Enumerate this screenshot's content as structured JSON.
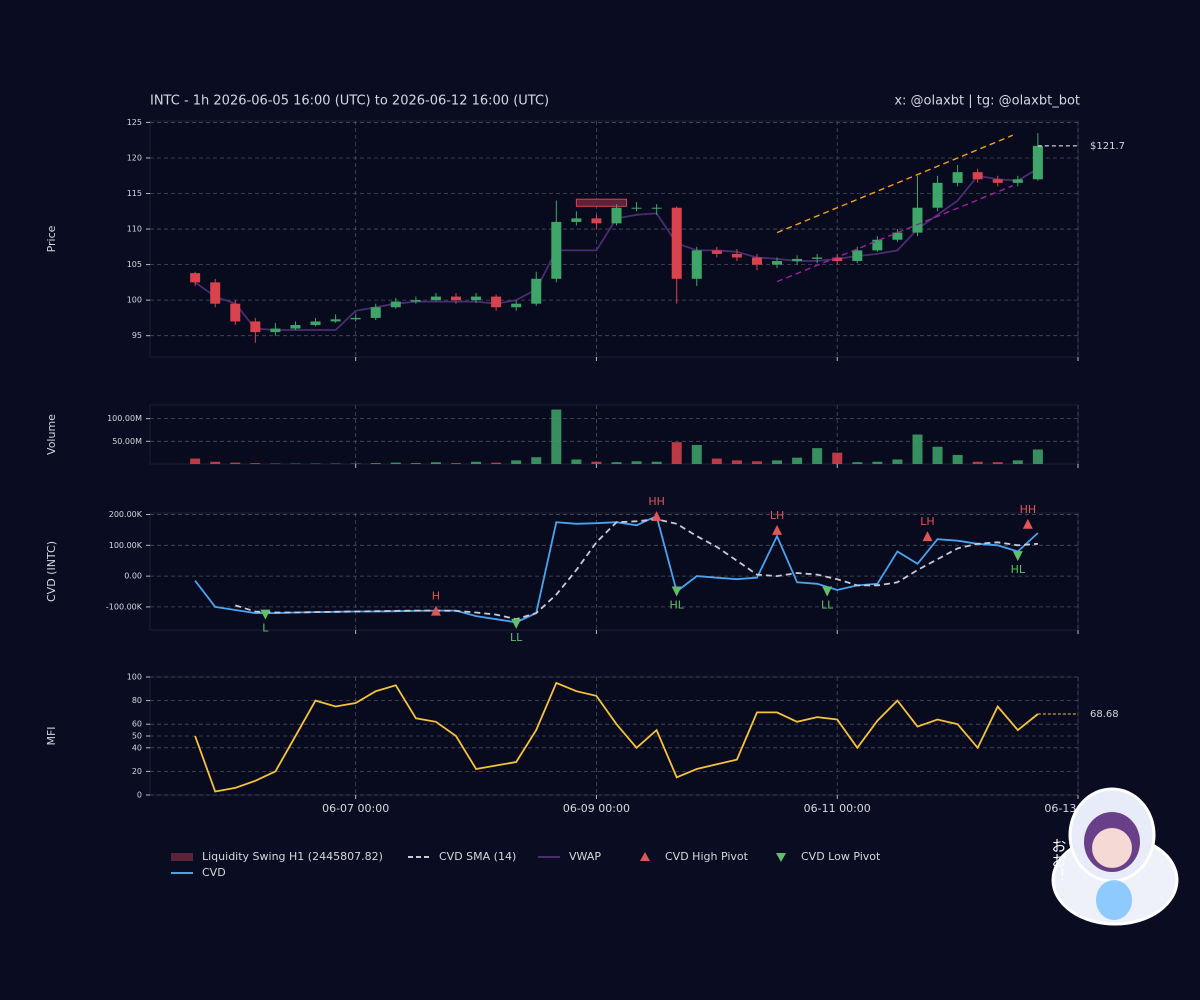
{
  "chart_data": [
    {
      "type": "candlestick",
      "title": "INTC - 1h 2026-06-05 16:00 (UTC) to 2026-06-12 16:00 (UTC)",
      "credit": "x: @olaxbt | tg: @olaxbt_bot",
      "ylabel": "Price",
      "x": [
        "06-05 16:00",
        "06-05 20:00",
        "06-06 00:00",
        "06-06 04:00",
        "06-06 08:00",
        "06-06 12:00",
        "06-06 16:00",
        "06-06 20:00",
        "06-07 00:00",
        "06-07 04:00",
        "06-07 08:00",
        "06-07 12:00",
        "06-07 16:00",
        "06-07 20:00",
        "06-08 00:00",
        "06-08 04:00",
        "06-08 08:00",
        "06-08 12:00",
        "06-08 16:00",
        "06-08 20:00",
        "06-09 00:00",
        "06-09 04:00",
        "06-09 08:00",
        "06-09 12:00",
        "06-09 16:00",
        "06-09 20:00",
        "06-10 00:00",
        "06-10 04:00",
        "06-10 08:00",
        "06-10 12:00",
        "06-10 16:00",
        "06-10 20:00",
        "06-11 00:00",
        "06-11 04:00",
        "06-11 08:00",
        "06-11 12:00",
        "06-11 16:00",
        "06-11 20:00",
        "06-12 00:00",
        "06-12 04:00",
        "06-12 08:00",
        "06-12 12:00",
        "06-12 16:00"
      ],
      "open": [
        103.8,
        102.5,
        99.5,
        97,
        95.5,
        96,
        96.5,
        97,
        97.3,
        97.5,
        99,
        99.8,
        100,
        100.5,
        100,
        100.5,
        99,
        99.5,
        103,
        111,
        111.5,
        110.8,
        113,
        113,
        113,
        103,
        107,
        106.5,
        106,
        105,
        105.5,
        105.8,
        106,
        105.5,
        107,
        108.5,
        109.5,
        113,
        116.5,
        118,
        117,
        116.5,
        117
      ],
      "high": [
        104,
        103,
        100,
        97.5,
        96.8,
        97,
        97.5,
        98,
        98,
        99.5,
        100.3,
        100.5,
        101,
        101,
        101,
        100.8,
        100,
        104,
        114,
        112.5,
        112,
        113.5,
        113.8,
        113.5,
        113.2,
        107.5,
        107.5,
        107.2,
        106.5,
        106,
        106.3,
        106.5,
        106.5,
        107.5,
        109,
        110,
        117.5,
        117.5,
        119,
        118.5,
        117.5,
        117.5,
        123.5
      ],
      "low": [
        102,
        99,
        96.5,
        94,
        95,
        95.8,
        96.3,
        96.8,
        97,
        97.2,
        98.8,
        99.5,
        99.8,
        99.5,
        99.6,
        98.5,
        98.5,
        99.2,
        102.5,
        110.5,
        110,
        110.5,
        112.5,
        112,
        99.5,
        102,
        106,
        105.5,
        104.2,
        104.5,
        105,
        105.2,
        105,
        105.2,
        106.8,
        108.2,
        109,
        112.5,
        116,
        116.5,
        116,
        116,
        116.8
      ],
      "close": [
        102.5,
        99.5,
        97,
        95.5,
        96,
        96.5,
        97,
        97.3,
        97.5,
        99,
        99.8,
        100,
        100.5,
        100,
        100.5,
        99,
        99.5,
        103,
        111,
        111.5,
        110.8,
        113,
        113,
        113,
        103,
        107,
        106.5,
        106,
        105,
        105.5,
        105.8,
        106,
        105.5,
        107,
        108.5,
        109.5,
        113,
        116.5,
        118,
        117,
        116.5,
        117,
        121.7
      ],
      "up_color": "#3fa66a",
      "down_color": "#d9434e",
      "series": [
        {
          "name": "VWAP",
          "color": "#4a2d6e",
          "values": [
            102.5,
            100.5,
            99.5,
            96,
            95.8,
            95.8,
            95.8,
            95.8,
            98.5,
            99,
            99.5,
            99.8,
            99.8,
            99.8,
            99.8,
            99.5,
            100,
            101.5,
            107,
            107,
            107,
            111.5,
            112,
            112.2,
            108,
            107,
            107,
            106.8,
            106,
            105.8,
            105.5,
            105.5,
            105.8,
            106.2,
            106.5,
            107,
            110,
            112,
            114,
            117.5,
            117,
            116.8,
            118.5
          ]
        }
      ],
      "liquidity_swing": {
        "name": "Liquidity Swing H1 (2445807.82)",
        "color": "#5a2338",
        "edge_color": "#d9434e",
        "x": [
          "06-08 20:00",
          "06-09 06:00"
        ],
        "values": [
          113.2,
          114.2
        ]
      },
      "trendlines": [
        {
          "color": "#f0a020",
          "x": [
            "06-10 12:00",
            "06-12 11:00"
          ],
          "values": [
            109.5,
            123.2
          ]
        },
        {
          "color": "#a020a0",
          "x": [
            "06-10 12:00",
            "06-12 11:00"
          ],
          "values": [
            102.6,
            116.1
          ]
        }
      ],
      "last_price": {
        "value": 121.7,
        "label": "$121.7"
      },
      "xlim": [
        "06-05 07:00",
        "06-13 00:00"
      ],
      "xticks": [
        "06-07 00:00",
        "06-09 00:00",
        "06-11 00:00",
        "06-13 00:00"
      ],
      "ylim": [
        92,
        125.2
      ],
      "yticks": [
        95,
        100,
        105,
        110,
        115,
        120,
        125
      ],
      "grid": true
    },
    {
      "type": "bar",
      "ylabel": "Volume",
      "x": [
        "06-05 16:00",
        "06-05 20:00",
        "06-06 00:00",
        "06-06 04:00",
        "06-06 08:00",
        "06-06 12:00",
        "06-06 16:00",
        "06-06 20:00",
        "06-07 00:00",
        "06-07 04:00",
        "06-07 08:00",
        "06-07 12:00",
        "06-07 16:00",
        "06-07 20:00",
        "06-08 00:00",
        "06-08 04:00",
        "06-08 08:00",
        "06-08 12:00",
        "06-08 16:00",
        "06-08 20:00",
        "06-09 00:00",
        "06-09 04:00",
        "06-09 08:00",
        "06-09 12:00",
        "06-09 16:00",
        "06-09 20:00",
        "06-10 00:00",
        "06-10 04:00",
        "06-10 08:00",
        "06-10 12:00",
        "06-10 16:00",
        "06-10 20:00",
        "06-11 00:00",
        "06-11 04:00",
        "06-11 08:00",
        "06-11 12:00",
        "06-11 16:00",
        "06-11 20:00",
        "06-12 00:00",
        "06-12 04:00",
        "06-12 08:00",
        "06-12 12:00",
        "06-12 16:00"
      ],
      "values": [
        12000000,
        5000000,
        3000000,
        2000000,
        1000000,
        1000000,
        1000000,
        1000000,
        1000000,
        2000000,
        3000000,
        2000000,
        4000000,
        2000000,
        5000000,
        3000000,
        8000000,
        15000000,
        120000000,
        10000000,
        5000000,
        4000000,
        6000000,
        5000000,
        48000000,
        42000000,
        12000000,
        8000000,
        6000000,
        8000000,
        14000000,
        35000000,
        25000000,
        4000000,
        5000000,
        10000000,
        65000000,
        38000000,
        20000000,
        5000000,
        4000000,
        8000000,
        32000000
      ],
      "xlim": [
        "06-05 07:00",
        "06-13 00:00"
      ],
      "xticks": [
        "06-07 00:00",
        "06-09 00:00",
        "06-11 00:00",
        "06-13 00:00"
      ],
      "ylim": [
        0,
        130000000
      ],
      "yticks": [
        {
          "value": 50000000,
          "label": "50.00M"
        },
        {
          "value": 100000000,
          "label": "100.00M"
        }
      ],
      "grid": true
    },
    {
      "type": "line",
      "ylabel": "CVD (INTC)",
      "x": [
        "06-05 16:00",
        "06-05 20:00",
        "06-06 00:00",
        "06-06 04:00",
        "06-06 08:00",
        "06-06 12:00",
        "06-06 16:00",
        "06-06 20:00",
        "06-07 00:00",
        "06-07 04:00",
        "06-07 08:00",
        "06-07 12:00",
        "06-07 16:00",
        "06-07 20:00",
        "06-08 00:00",
        "06-08 04:00",
        "06-08 08:00",
        "06-08 12:00",
        "06-08 16:00",
        "06-08 20:00",
        "06-09 00:00",
        "06-09 04:00",
        "06-09 08:00",
        "06-09 12:00",
        "06-09 16:00",
        "06-09 20:00",
        "06-10 00:00",
        "06-10 04:00",
        "06-10 08:00",
        "06-10 12:00",
        "06-10 16:00",
        "06-10 20:00",
        "06-11 00:00",
        "06-11 04:00",
        "06-11 08:00",
        "06-11 12:00",
        "06-11 16:00",
        "06-11 20:00",
        "06-12 00:00",
        "06-12 04:00",
        "06-12 08:00",
        "06-12 12:00",
        "06-12 16:00"
      ],
      "series": [
        {
          "name": "CVD",
          "color": "#4aa3ef",
          "values": [
            -15000,
            -100000,
            -110000,
            -120000,
            -120000,
            -118000,
            -117000,
            -116000,
            -115000,
            -115000,
            -114000,
            -113000,
            -112000,
            -112000,
            -130000,
            -140000,
            -150000,
            -120000,
            175000,
            170000,
            172000,
            175000,
            165000,
            195000,
            -50000,
            0,
            -5000,
            -10000,
            -5000,
            130000,
            -20000,
            -25000,
            -45000,
            -30000,
            -25000,
            80000,
            40000,
            120000,
            115000,
            105000,
            100000,
            80000,
            140000
          ]
        },
        {
          "name": "CVD SMA (14)",
          "color": "#c8cad6",
          "dash": true,
          "values": [
            null,
            null,
            -95000,
            -115000,
            -118000,
            -118000,
            -117000,
            -116000,
            -115000,
            -114000,
            -113000,
            -112000,
            -112000,
            -113000,
            -118000,
            -125000,
            -140000,
            -120000,
            -60000,
            20000,
            110000,
            175000,
            178000,
            185000,
            170000,
            130000,
            95000,
            50000,
            5000,
            0,
            10000,
            5000,
            -10000,
            -30000,
            -30000,
            -20000,
            20000,
            55000,
            90000,
            105000,
            110000,
            100000,
            105000
          ]
        }
      ],
      "high_pivots": {
        "name": "CVD High Pivot",
        "color": "#e05555",
        "x": [
          "06-07 16:00",
          "06-09 12:00",
          "06-10 12:00",
          "06-11 18:00",
          "06-12 14:00"
        ],
        "values": [
          -112000,
          195000,
          150000,
          130000,
          170000
        ],
        "labels": [
          "H",
          "HH",
          "LH",
          "LH",
          "HH"
        ]
      },
      "low_pivots": {
        "name": "CVD Low Pivot",
        "color": "#5fbf6a",
        "x": [
          "06-06 06:00",
          "06-08 08:00",
          "06-09 16:00",
          "06-10 22:00",
          "06-12 12:00"
        ],
        "values": [
          -125000,
          -155000,
          -50000,
          -50000,
          65000
        ],
        "labels": [
          "L",
          "LL",
          "HL",
          "LL",
          "HL"
        ]
      },
      "xlim": [
        "06-05 07:00",
        "06-13 00:00"
      ],
      "xticks": [
        "06-07 00:00",
        "06-09 00:00",
        "06-11 00:00",
        "06-13 00:00"
      ],
      "ylim": [
        -175000,
        205000
      ],
      "yticks": [
        {
          "value": -100000,
          "label": "-100.00K"
        },
        {
          "value": 0,
          "label": "0.00"
        },
        {
          "value": 100000,
          "label": "100.00K"
        },
        {
          "value": 200000,
          "label": "200.00K"
        }
      ],
      "grid": true
    },
    {
      "type": "line",
      "ylabel": "MFI",
      "x": [
        "06-05 16:00",
        "06-05 20:00",
        "06-06 00:00",
        "06-06 04:00",
        "06-06 08:00",
        "06-06 12:00",
        "06-06 16:00",
        "06-06 20:00",
        "06-07 00:00",
        "06-07 04:00",
        "06-07 08:00",
        "06-07 12:00",
        "06-07 16:00",
        "06-07 20:00",
        "06-08 00:00",
        "06-08 04:00",
        "06-08 08:00",
        "06-08 12:00",
        "06-08 16:00",
        "06-08 20:00",
        "06-09 00:00",
        "06-09 04:00",
        "06-09 08:00",
        "06-09 12:00",
        "06-09 16:00",
        "06-09 20:00",
        "06-10 00:00",
        "06-10 04:00",
        "06-10 08:00",
        "06-10 12:00",
        "06-10 16:00",
        "06-10 20:00",
        "06-11 00:00",
        "06-11 04:00",
        "06-11 08:00",
        "06-11 12:00",
        "06-11 16:00",
        "06-11 20:00",
        "06-12 00:00",
        "06-12 04:00",
        "06-12 08:00",
        "06-12 12:00",
        "06-12 16:00"
      ],
      "series": [
        {
          "name": "MFI",
          "color": "#f5c23a",
          "values": [
            50,
            3,
            6,
            12,
            20,
            50,
            80,
            75,
            78,
            88,
            93,
            65,
            62,
            50,
            22,
            25,
            28,
            55,
            95,
            88,
            84,
            60,
            40,
            55,
            15,
            22,
            26,
            30,
            70,
            70,
            62,
            66,
            64,
            40,
            63,
            80,
            58,
            64,
            60,
            40,
            75,
            55,
            68.68
          ]
        }
      ],
      "xlim": [
        "06-05 07:00",
        "06-13 00:00"
      ],
      "xticks": [
        "06-07 00:00",
        "06-09 00:00",
        "06-11 00:00",
        "06-13 00:00"
      ],
      "ylim": [
        0,
        100
      ],
      "yticks": [
        0,
        20,
        40,
        50,
        60,
        80,
        100
      ],
      "grid": true
    }
  ],
  "sticker": {
    "text": "おお！"
  }
}
